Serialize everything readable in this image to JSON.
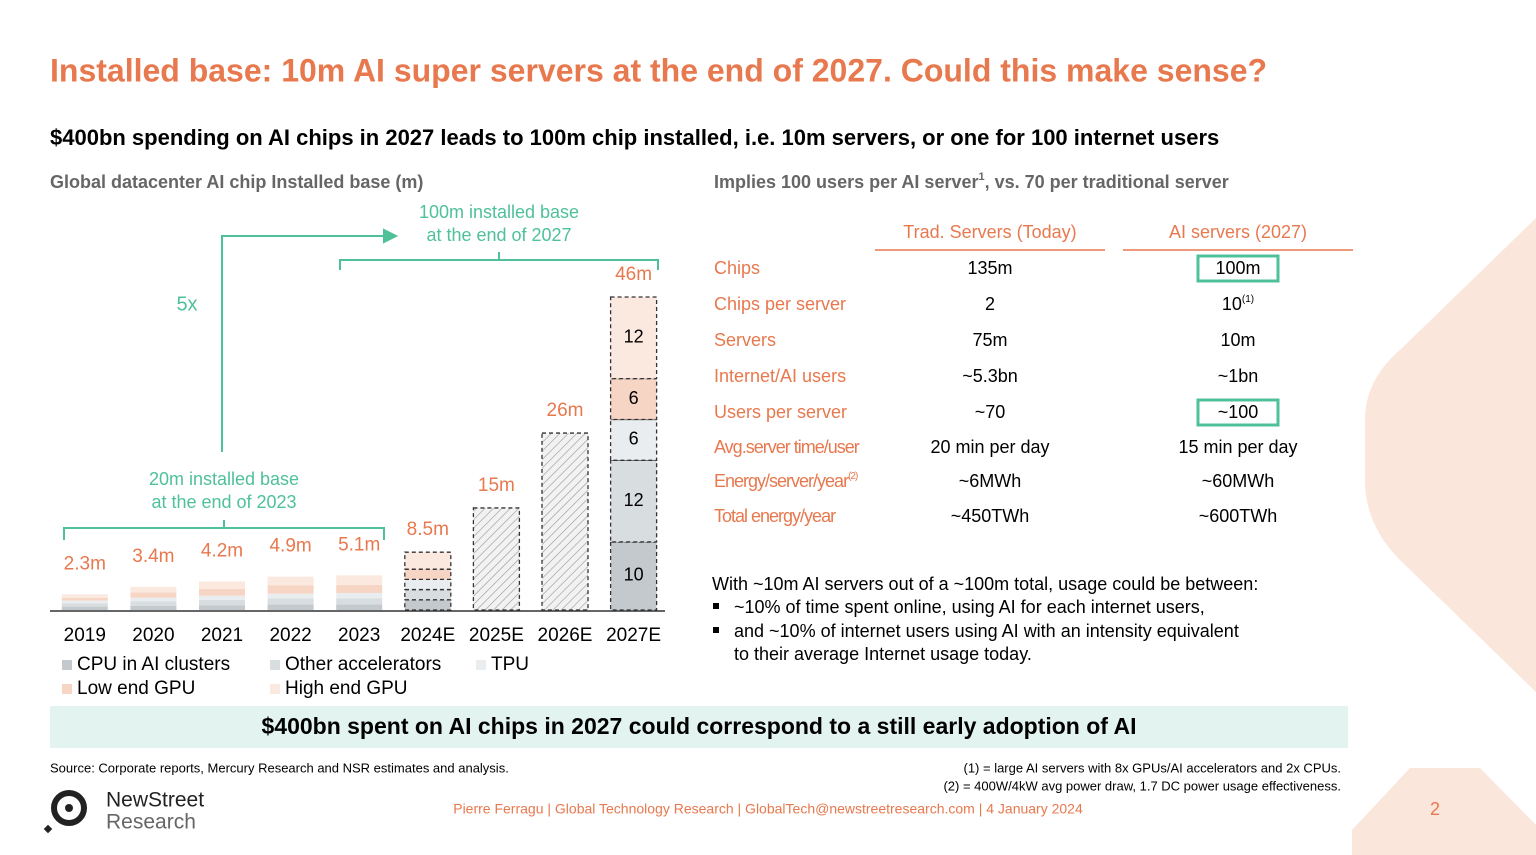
{
  "header": {
    "title": "Installed base: 10m AI super servers at the end of 2027. Could this make sense?",
    "subtitle": "$400bn spending on AI chips in 2027 leads to 100m chip installed, i.e. 10m servers, or one for 100 internet users"
  },
  "chart_data": {
    "type": "bar",
    "stacked": true,
    "title": "Global datacenter AI chip Installed base (m)",
    "categories": [
      "2019",
      "2020",
      "2021",
      "2022",
      "2023",
      "2024E",
      "2025E",
      "2026E",
      "2027E"
    ],
    "series": [
      {
        "name": "CPU in AI clusters",
        "color": "#c3c9cc",
        "values": [
          0.5,
          0.6,
          0.7,
          0.8,
          0.8,
          1.5,
          null,
          null,
          10
        ]
      },
      {
        "name": "Other accelerators",
        "color": "#d8dde0",
        "values": [
          0.5,
          0.7,
          0.8,
          0.9,
          0.9,
          1.5,
          null,
          null,
          12
        ]
      },
      {
        "name": "TPU",
        "color": "#eaedef",
        "values": [
          0.4,
          0.5,
          0.6,
          0.7,
          0.8,
          1.5,
          null,
          null,
          6
        ]
      },
      {
        "name": "Low end GPU",
        "color": "#f7d5c5",
        "values": [
          0.4,
          0.8,
          1.0,
          1.2,
          1.2,
          1.5,
          null,
          null,
          6
        ]
      },
      {
        "name": "High end GPU",
        "color": "#fbe9e0",
        "values": [
          0.5,
          0.8,
          1.1,
          1.3,
          1.4,
          2.5,
          null,
          null,
          12
        ]
      }
    ],
    "totals": {
      "values": [
        2.3,
        3.4,
        4.2,
        4.9,
        5.1,
        8.5,
        15,
        26,
        46
      ],
      "value_labels": [
        "2.3m",
        "3.4m",
        "4.2m",
        "4.9m",
        "5.1m",
        "8.5m",
        "15m",
        "26m",
        "46m"
      ]
    },
    "projected": [
      false,
      false,
      false,
      false,
      false,
      true,
      true,
      true,
      true
    ],
    "ylim": [
      0,
      46
    ],
    "annotations": [
      "5x",
      "100m installed base",
      "at the end of 2027",
      "20m installed base",
      "at the end of 2023"
    ]
  },
  "table": {
    "title": {
      "text": "Implies 100 users per AI server",
      "sup": "1",
      "rest": ", vs. 70 per traditional server"
    },
    "columns": [
      "Trad. Servers (Today)",
      "AI servers (2027)"
    ],
    "rows": [
      {
        "label": "Chips",
        "cells": [
          "135m",
          "100m"
        ]
      },
      {
        "label": "Chips per server",
        "cells": [
          "2",
          {
            "text": "10",
            "sup": "(1)"
          }
        ]
      },
      {
        "label": "Servers",
        "cells": [
          "75m",
          "10m"
        ]
      },
      {
        "label": "Internet/AI users",
        "cells": [
          "~5.3bn",
          "~1bn"
        ]
      },
      {
        "label": "Users per server",
        "cells": [
          "~70",
          "~100"
        ]
      },
      {
        "label": "Avg.server time/user",
        "cells": [
          "20 min per day",
          "15 min per day"
        ]
      },
      {
        "label": {
          "text": "Energy/server/year",
          "sup": "(2)"
        },
        "cells": [
          "~6MWh",
          "~60MWh"
        ]
      },
      {
        "label": "Total energy/year",
        "cells": [
          "~450TWh",
          "~600TWh"
        ]
      }
    ]
  },
  "usage": {
    "intro": "With ~10m AI servers out of a ~100m total, usage could be between:",
    "bullets": [
      "~10% of time spent online, using AI for each internet users,",
      "and ~10% of internet users using AI with an intensity equivalent",
      "to their average Internet usage today."
    ]
  },
  "banner": "$400bn spent on AI chips in 2027 could correspond to a still early adoption of AI",
  "footer": {
    "source": "Source: Corporate reports, Mercury Research and NSR estimates and analysis.",
    "notes": [
      "(1) = large AI servers with 8x GPUs/AI accelerators and 2x CPUs.",
      "(2) = 400W/4kW avg power draw, 1.7 DC power usage effectiveness."
    ],
    "logo": [
      "NewStreet",
      "Research"
    ],
    "credit": "Pierre Ferragu | Global Technology Research | GlobalTech@newstreetresearch.com | 4 January 2024",
    "page": "2"
  }
}
